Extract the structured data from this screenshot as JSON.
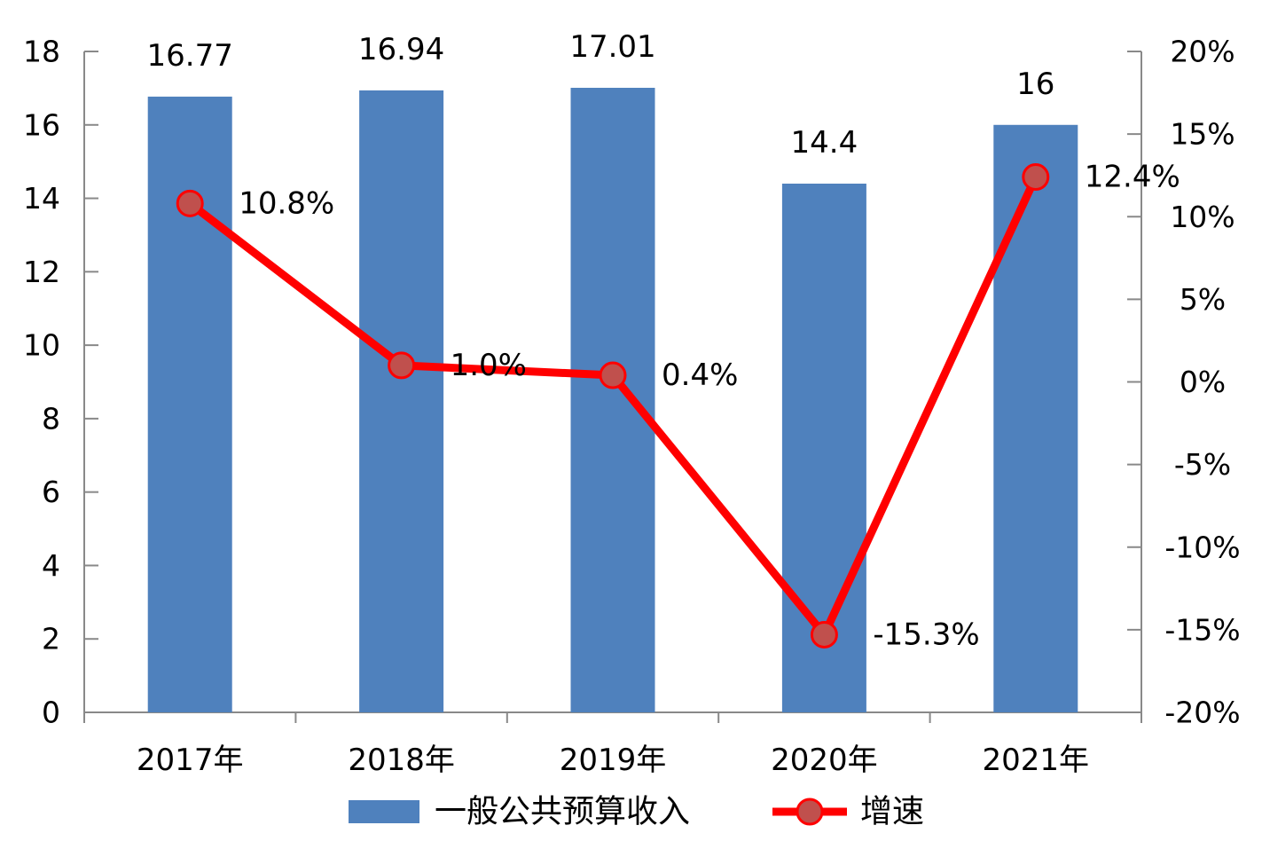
{
  "chart_data": {
    "type": "bar",
    "categories": [
      "2017年",
      "2018年",
      "2019年",
      "2020年",
      "2021年"
    ],
    "series": [
      {
        "name": "一般公共预算收入",
        "chart_type": "bar",
        "axis": "left",
        "values": [
          16.77,
          16.94,
          17.01,
          14.4,
          16
        ],
        "labels": [
          "16.77",
          "16.94",
          "17.01",
          "14.4",
          "16"
        ],
        "color": "#4F81BD"
      },
      {
        "name": "增速",
        "chart_type": "line",
        "axis": "right",
        "values": [
          10.8,
          1.0,
          0.4,
          -15.3,
          12.4
        ],
        "labels": [
          "10.8%",
          "1.0%",
          "0.4%",
          "-15.3%",
          "12.4%"
        ],
        "color": "#FF0000",
        "marker_color": "#C0504D"
      }
    ],
    "y_left": {
      "ylim": [
        0,
        18
      ],
      "ticks": [
        "0",
        "2",
        "4",
        "6",
        "8",
        "10",
        "12",
        "14",
        "16",
        "18"
      ]
    },
    "y_right": {
      "ylim": [
        -20,
        20
      ],
      "ticks": [
        "-20%",
        "-15%",
        "-10%",
        "-5%",
        "0%",
        "5%",
        "10%",
        "15%",
        "20%"
      ]
    },
    "title": "",
    "xlabel": "",
    "ylabel": "",
    "grid": false,
    "legend_position": "bottom"
  }
}
